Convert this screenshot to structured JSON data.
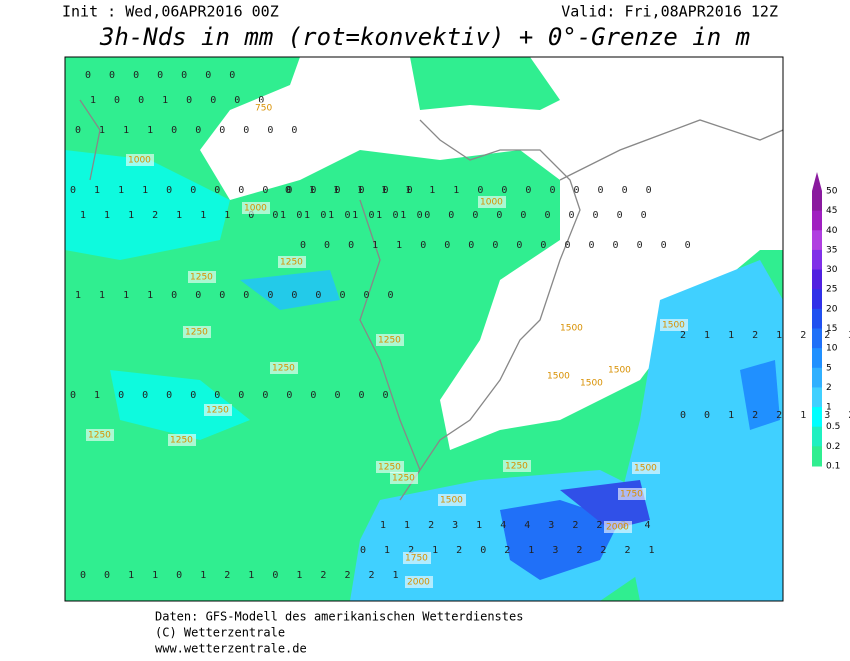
{
  "header": {
    "init": "Init : Wed,06APR2016 00Z",
    "valid": "Valid: Fri,08APR2016 12Z",
    "title": "3h-Nds in mm (rot=konvektiv) + 0°-Grenze in m"
  },
  "legend": {
    "levels": [
      50,
      45,
      40,
      35,
      30,
      25,
      20,
      15,
      10,
      5,
      2,
      1,
      0.5,
      0.2,
      0.1
    ],
    "colors": [
      "#8a1a9e",
      "#a020c0",
      "#b040e0",
      "#8030e8",
      "#5020e0",
      "#3030e8",
      "#2050f0",
      "#2070f8",
      "#2090ff",
      "#30b0ff",
      "#40d0ff",
      "#00ffff",
      "#20f0c0",
      "#30ee90"
    ]
  },
  "contour_labels": [
    "750",
    "1000",
    "1000",
    "1000",
    "1250",
    "1250",
    "1250",
    "1250",
    "1250",
    "1250",
    "1250",
    "1250",
    "1250",
    "1250",
    "1500",
    "1500",
    "1500",
    "1500",
    "1500",
    "1500",
    "1500",
    "1750",
    "1750",
    "2000",
    "2000",
    "1250"
  ],
  "precip_rows": [
    "0 0 0 0 0 0 0",
    "1 0 0 1 0 0 0 0",
    "0 1 1 1 0 0 0 0 0 0",
    "0 1 1 1 0 0 0 0 0 0 0 0 0 0 0",
    "1 1 1 2 1 1 1 0 0 0 0 0 0 0 0",
    "0 1 1 1 1 1 1 1 0 0 0 0 0 0 0 0",
    "1 1 1 1 1 1 0 0 0 0 0 0 0 0 0 0",
    "0 0 0 1 1 0 0 0 0 0 0 0 0 0 0 0 0",
    "1 1 1 1 0 0 0 0 0 0 0 0 0 0",
    "0 1 0 0 0 0 0 0 0 0 0 0 0 0",
    "1 1 2 3 1 4 4 3 2 2 3 4",
    "0 1 2 1 2 0 2 1 3 2 2 2 1",
    "0 0 1 1 0 1 2 1 0 1 2 2 2 1",
    "2 1 1 2 1 2 2 3",
    "0 0 1 2 2 1 3 2 1"
  ],
  "footer": {
    "source": "Daten: GFS-Modell des amerikanischen Wetterdienstes",
    "copyright": "(C) Wetterzentrale",
    "url": "www.wetterzentrale.de"
  }
}
